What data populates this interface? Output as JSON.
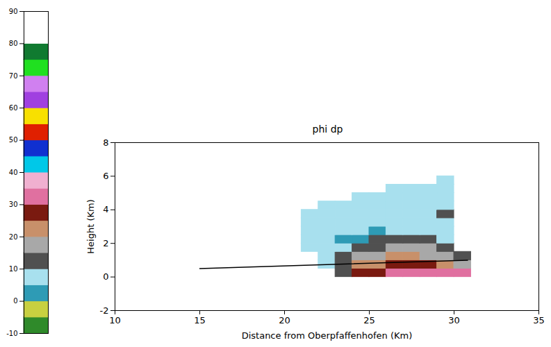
{
  "chart_data": {
    "type": "heatmap",
    "title": "phi dp",
    "x_label": "Distance from Oberpfaffenhofen (Km)",
    "y_label": "Height (Km)",
    "xlim": [
      10,
      35
    ],
    "xticks": [
      10,
      15,
      20,
      25,
      30,
      35
    ],
    "ylim": [
      -2,
      8
    ],
    "yticks": [
      -2,
      0,
      2,
      4,
      6,
      8
    ],
    "x_edges": [
      15,
      16,
      17,
      18,
      19,
      20,
      21,
      22,
      23,
      24,
      25,
      26,
      27,
      28,
      29,
      30,
      31
    ],
    "y_edges": [
      0,
      0.5,
      1,
      1.5,
      2,
      2.5,
      3,
      3.5,
      4,
      4.5,
      5,
      5.5,
      6
    ],
    "values": [
      [
        null,
        null,
        null,
        null,
        null,
        null,
        null,
        null,
        12,
        28,
        29,
        33,
        34,
        33,
        32,
        30
      ],
      [
        null,
        null,
        null,
        null,
        null,
        null,
        null,
        5,
        14,
        22,
        24,
        26,
        27,
        25,
        22,
        18
      ],
      [
        null,
        null,
        null,
        null,
        null,
        null,
        null,
        5,
        10,
        15,
        18,
        20,
        21,
        19,
        16,
        13
      ],
      [
        null,
        null,
        null,
        null,
        null,
        null,
        5,
        6,
        5,
        12,
        14,
        15,
        16,
        15,
        13,
        null
      ],
      [
        null,
        null,
        null,
        null,
        null,
        null,
        6,
        5,
        4,
        4,
        11,
        11,
        12,
        12,
        8,
        null
      ],
      [
        null,
        null,
        null,
        null,
        null,
        null,
        6,
        5,
        6,
        5,
        4,
        5,
        6,
        5,
        5,
        null
      ],
      [
        null,
        null,
        null,
        null,
        null,
        null,
        7,
        6,
        5,
        6,
        5,
        6,
        5,
        6,
        5,
        null
      ],
      [
        null,
        null,
        null,
        null,
        null,
        null,
        6,
        6,
        6,
        5,
        6,
        5,
        6,
        5,
        12,
        null
      ],
      [
        null,
        null,
        null,
        null,
        null,
        null,
        null,
        6,
        6,
        6,
        5,
        6,
        5,
        6,
        5,
        null
      ],
      [
        null,
        null,
        null,
        null,
        null,
        null,
        null,
        null,
        null,
        6,
        6,
        6,
        6,
        6,
        6,
        null
      ],
      [
        null,
        null,
        null,
        null,
        null,
        null,
        null,
        null,
        null,
        null,
        null,
        7,
        6,
        6,
        6,
        null
      ],
      [
        null,
        null,
        null,
        null,
        null,
        null,
        null,
        null,
        null,
        null,
        null,
        null,
        null,
        null,
        7,
        null
      ]
    ],
    "colorbar": {
      "range": [
        -10,
        90
      ],
      "ticks": [
        -10,
        0,
        10,
        20,
        30,
        40,
        50,
        60,
        70,
        80,
        90
      ],
      "bounds": [
        -10,
        -5,
        0,
        5,
        10,
        15,
        20,
        25,
        30,
        35,
        40,
        45,
        50,
        55,
        60,
        65,
        70,
        75,
        80,
        85,
        90
      ],
      "colors": [
        "#2f8a2a",
        "#c8d040",
        "#2e9bb5",
        "#a8e0ee",
        "#505050",
        "#a8a8a8",
        "#c8906a",
        "#7a1a10",
        "#e070a0",
        "#f0b0d0",
        "#00c8e8",
        "#1030d0",
        "#e02000",
        "#f8e000",
        "#a040e0",
        "#d080f0",
        "#20e020",
        "#107a30",
        "#ffffff",
        "#ffffff"
      ]
    },
    "line": {
      "x": [
        15,
        30.8
      ],
      "y": [
        0.5,
        1.0
      ],
      "color": "#000000"
    }
  }
}
